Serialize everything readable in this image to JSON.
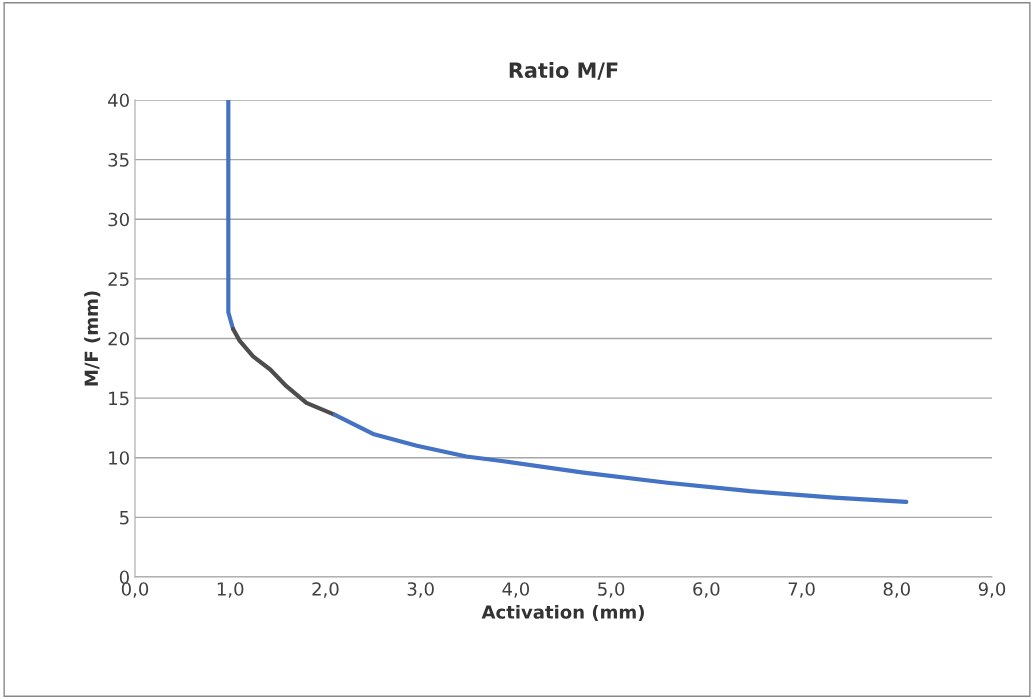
{
  "chart_data": {
    "type": "line",
    "title": "Ratio M/F",
    "xlabel": "Activation (mm)",
    "ylabel": "M/F (mm)",
    "series": [
      {
        "color": "#4472c4",
        "x": [
          0.98,
          0.98,
          1.03
        ],
        "values": [
          40,
          22.2,
          20.8
        ]
      },
      {
        "color": "#4d4d4d",
        "x": [
          1.03,
          1.1,
          1.24,
          1.42,
          1.59,
          1.8,
          2.1
        ],
        "values": [
          20.8,
          19.8,
          18.5,
          17.4,
          16.0,
          14.6,
          13.6
        ]
      },
      {
        "color": "#4472c4",
        "x": [
          2.1,
          2.5,
          2.96,
          3.48,
          3.83,
          4.71,
          5.59,
          6.46,
          7.34,
          8.1
        ],
        "values": [
          13.6,
          12.0,
          11.0,
          10.1,
          9.75,
          8.75,
          7.9,
          7.2,
          6.65,
          6.3
        ]
      }
    ],
    "xlim": [
      0,
      9
    ],
    "ylim": [
      0,
      40
    ],
    "xticks": [
      {
        "value": 0,
        "label": "0,0"
      },
      {
        "value": 1,
        "label": "1,0"
      },
      {
        "value": 2,
        "label": "2,0"
      },
      {
        "value": 3,
        "label": "3,0"
      },
      {
        "value": 4,
        "label": "4,0"
      },
      {
        "value": 5,
        "label": "5,0"
      },
      {
        "value": 6,
        "label": "6,0"
      },
      {
        "value": 7,
        "label": "7,0"
      },
      {
        "value": 8,
        "label": "8,0"
      },
      {
        "value": 9,
        "label": "9,0"
      }
    ],
    "yticks": [
      0,
      5,
      10,
      15,
      20,
      25,
      30,
      35,
      40
    ],
    "grid": "y",
    "marker": "none",
    "line_style": "solid"
  }
}
